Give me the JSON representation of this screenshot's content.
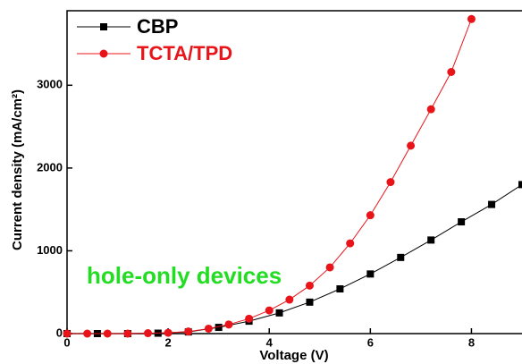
{
  "chart_data": {
    "type": "line",
    "xlabel": "Voltage (V)",
    "ylabel": "Current density (mA/cm²)",
    "annotation": "hole-only devices",
    "annotation_color": "#22dd22",
    "xlim": [
      0,
      9
    ],
    "xticks": [
      0,
      2,
      4,
      6,
      8
    ],
    "ylim": [
      0,
      3900
    ],
    "yticks": [
      0,
      1000,
      2000,
      3000
    ],
    "legend": "upper left",
    "series": [
      {
        "name": "CBP",
        "color": "#000000",
        "marker": "square",
        "x": [
          0,
          0.6,
          1.2,
          1.8,
          2.4,
          3.0,
          3.6,
          4.2,
          4.8,
          5.4,
          6.0,
          6.6,
          7.2,
          7.8,
          8.4,
          9.0
        ],
        "values": [
          0,
          0,
          0,
          5,
          20,
          75,
          150,
          250,
          380,
          540,
          720,
          920,
          1130,
          1350,
          1560,
          1800
        ]
      },
      {
        "name": "TCTA/TPD",
        "color": "#e8141a",
        "marker": "circle",
        "x": [
          0,
          0.4,
          0.8,
          1.2,
          1.6,
          2.0,
          2.4,
          2.8,
          3.2,
          3.6,
          4.0,
          4.4,
          4.8,
          5.2,
          5.6,
          6.0,
          6.4,
          6.8,
          7.2,
          7.6,
          8.0
        ],
        "values": [
          0,
          0,
          0,
          0,
          5,
          10,
          25,
          60,
          110,
          180,
          280,
          410,
          580,
          800,
          1090,
          1430,
          1830,
          2270,
          2710,
          3160,
          3800
        ]
      }
    ]
  }
}
